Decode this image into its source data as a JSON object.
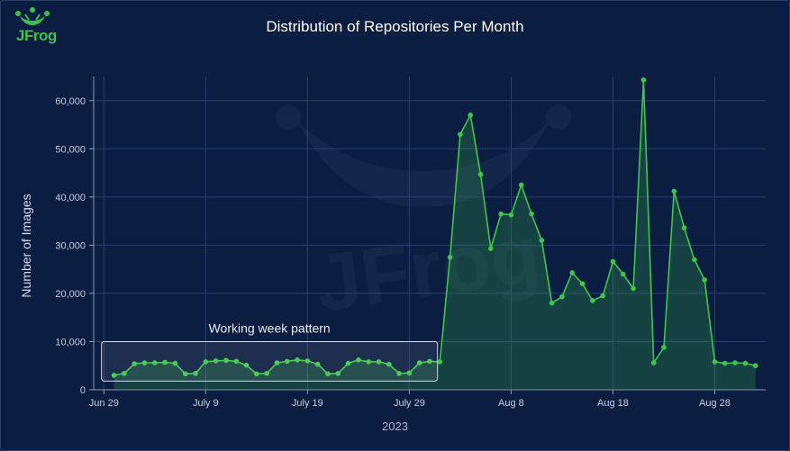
{
  "logo": {
    "text": "JFrog"
  },
  "chart_data": {
    "type": "line",
    "title": "Distribution of Repositories Per Month",
    "ylabel": "Number of Images",
    "xlabel": "2023",
    "x_ticks": [
      {
        "label": "Jun 29",
        "day": 0
      },
      {
        "label": "July 9",
        "day": 10
      },
      {
        "label": "July 19",
        "day": 20
      },
      {
        "label": "July 29",
        "day": 30
      },
      {
        "label": "Aug 8",
        "day": 40
      },
      {
        "label": "Aug 18",
        "day": 50
      },
      {
        "label": "Aug 28",
        "day": 60
      }
    ],
    "xlim": [
      -1,
      65
    ],
    "ylim": [
      0,
      65000
    ],
    "y_ticks": [
      0,
      10000,
      20000,
      30000,
      40000,
      50000,
      60000
    ],
    "y_tick_labels": [
      "0",
      "10,000",
      "20,000",
      "30,000",
      "40,000",
      "50,000",
      "60,000"
    ],
    "grid": true,
    "series_color": "#3fc64a",
    "x": [
      1,
      2,
      3,
      4,
      5,
      6,
      7,
      8,
      9,
      10,
      11,
      12,
      13,
      14,
      15,
      16,
      17,
      18,
      19,
      20,
      21,
      22,
      23,
      24,
      25,
      26,
      27,
      28,
      29,
      30,
      31,
      32,
      33,
      34,
      35,
      36,
      37,
      38,
      39,
      40,
      41,
      42,
      43,
      44,
      45,
      46,
      47,
      48,
      49,
      50,
      51,
      52,
      53,
      54,
      55,
      56,
      57,
      58,
      59,
      60,
      61,
      62,
      63,
      64
    ],
    "values": [
      3000,
      3400,
      5400,
      5600,
      5600,
      5700,
      5500,
      3300,
      3400,
      5800,
      6000,
      6100,
      5900,
      5100,
      3300,
      3400,
      5600,
      5900,
      6200,
      6000,
      5300,
      3300,
      3400,
      5500,
      6200,
      5800,
      5800,
      5300,
      3400,
      3500,
      5600,
      5900,
      5800,
      27500,
      53000,
      57000,
      44700,
      29300,
      36500,
      36300,
      42500,
      36500,
      31000,
      18000,
      19300,
      24300,
      22000,
      18500,
      19500,
      26600,
      24000,
      21000,
      64300,
      5600,
      8800,
      41200,
      33600,
      27000,
      22800,
      5800,
      5500,
      5600,
      5500,
      5000
    ],
    "annotations": [
      {
        "text": "Working week pattern",
        "x_start": 1,
        "x_end": 31,
        "y_low": 1800,
        "y_high": 10000
      }
    ]
  }
}
